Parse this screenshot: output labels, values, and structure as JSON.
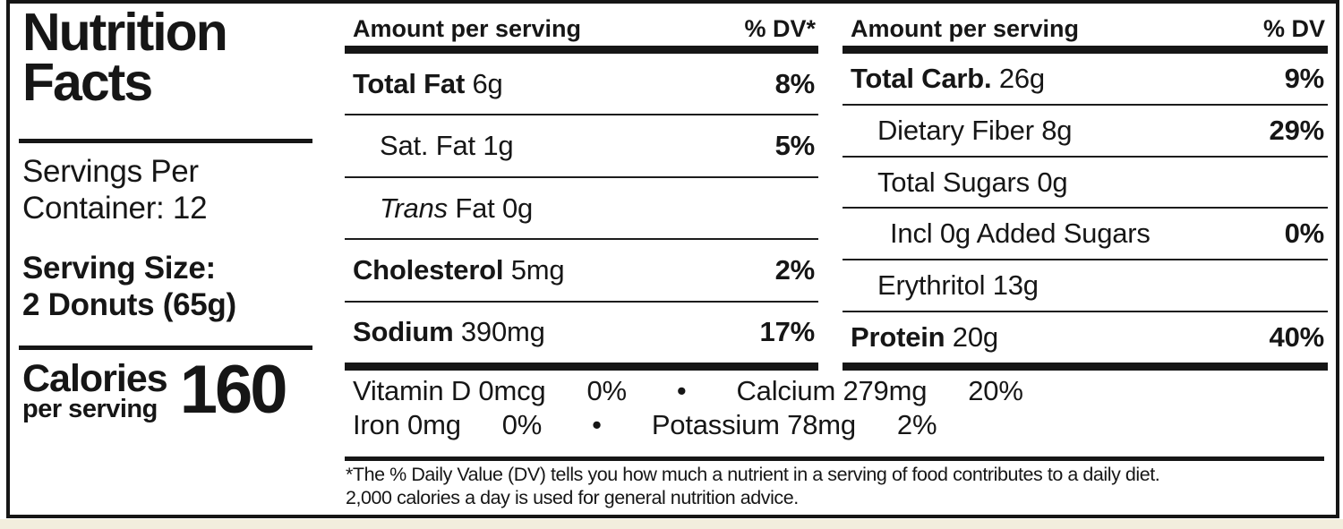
{
  "label": {
    "title": [
      "Nutrition",
      "Facts"
    ],
    "servings_per_container": [
      "Servings Per",
      "Container: 12"
    ],
    "serving_size": [
      "Serving Size:",
      "2 Donuts (65g)"
    ],
    "calories": {
      "label": "Calories",
      "sublabel": "per serving",
      "value": "160"
    }
  },
  "columns": [
    {
      "header": "Amount per serving",
      "dv_header": "% DV*",
      "rows": [
        {
          "bold": "Total Fat",
          "rest": " 6g",
          "dv": "8%"
        },
        {
          "rest": "Sat. Fat 1g",
          "dv": "5%"
        },
        {
          "italic": "Trans",
          "rest": " Fat 0g"
        },
        {
          "bold": "Cholesterol",
          "rest": " 5mg",
          "dv": "2%"
        },
        {
          "bold": "Sodium",
          "rest": " 390mg",
          "dv": "17%"
        }
      ]
    },
    {
      "header": "Amount per serving",
      "dv_header": "% DV",
      "rows": [
        {
          "bold": "Total Carb.",
          "rest": " 26g",
          "dv": "9%"
        },
        {
          "rest": "Dietary Fiber 8g",
          "dv": "29%"
        },
        {
          "rest": "Total Sugars 0g"
        },
        {
          "rest": "Incl 0g Added Sugars",
          "dv": "0%"
        },
        {
          "rest": "Erythritol 13g"
        },
        {
          "bold": "Protein",
          "rest": " 20g",
          "dv": "40%"
        }
      ]
    }
  ],
  "micronutrients": {
    "bullet": "•",
    "line1": [
      {
        "text": "Vitamin D 0mcg",
        "dv": "0%"
      },
      {
        "text": "Calcium 279mg",
        "dv": "20%"
      }
    ],
    "line2": [
      {
        "text": "Iron 0mg",
        "dv": "0%"
      },
      {
        "text": "Potassium 78mg",
        "dv": "2%"
      }
    ]
  },
  "footnote": [
    "*The % Daily Value (DV) tells you how much a nutrient in a serving of food contributes to a daily diet.",
    "2,000 calories a day is used for general nutrition advice."
  ],
  "colors": {
    "ink": "#161616",
    "background": "#ffffff",
    "page_edge": "#f2eedd"
  }
}
